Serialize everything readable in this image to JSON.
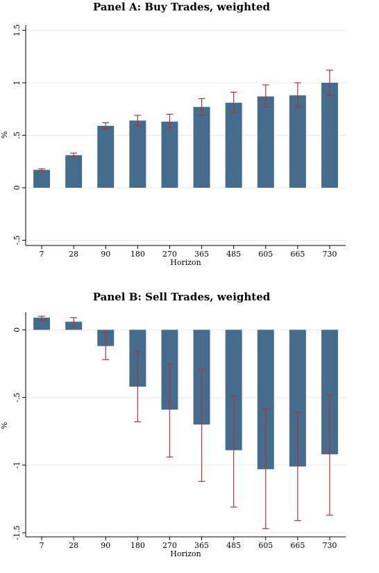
{
  "chart_data": [
    {
      "type": "bar",
      "title": "Panel A: Buy Trades, weighted",
      "xlabel": "Horizon",
      "ylabel": "%",
      "categories": [
        "7",
        "28",
        "90",
        "180",
        "270",
        "365",
        "485",
        "605",
        "665",
        "730"
      ],
      "values": [
        0.17,
        0.31,
        0.59,
        0.64,
        0.63,
        0.77,
        0.81,
        0.87,
        0.88,
        1.0
      ],
      "ci_low": [
        0.16,
        0.29,
        0.56,
        0.59,
        0.57,
        0.69,
        0.72,
        0.77,
        0.77,
        0.88
      ],
      "ci_high": [
        0.18,
        0.33,
        0.62,
        0.69,
        0.7,
        0.85,
        0.91,
        0.98,
        1.0,
        1.12
      ],
      "yticks": [
        -0.5,
        0,
        0.5,
        1,
        1.5
      ],
      "ytick_labels": [
        "-.5",
        "0",
        ".5",
        "1",
        "1.5"
      ],
      "ylim": [
        -0.55,
        1.55
      ],
      "grid": true,
      "colors": {
        "bar": "#456b8d",
        "error": "#a8363a",
        "grid": "#e3ecf2"
      }
    },
    {
      "type": "bar",
      "title": "Panel B: Sell Trades, weighted",
      "xlabel": "Horizon",
      "ylabel": "%",
      "categories": [
        "7",
        "28",
        "90",
        "180",
        "270",
        "365",
        "485",
        "605",
        "665",
        "730"
      ],
      "values": [
        0.09,
        0.06,
        -0.12,
        -0.42,
        -0.59,
        -0.7,
        -0.89,
        -1.03,
        -1.01,
        -0.92
      ],
      "ci_low": [
        0.07,
        0.02,
        -0.22,
        -0.68,
        -0.94,
        -1.12,
        -1.31,
        -1.47,
        -1.41,
        -1.37
      ],
      "ci_high": [
        0.1,
        0.09,
        -0.02,
        -0.16,
        -0.25,
        -0.29,
        -0.49,
        -0.58,
        -0.61,
        -0.48
      ],
      "yticks": [
        -1.5,
        -1,
        -0.5,
        0
      ],
      "ytick_labels": [
        "-1.5",
        "-1",
        "-.5",
        "0"
      ],
      "ylim": [
        -1.53,
        0.13
      ],
      "grid": true,
      "colors": {
        "bar": "#456b8d",
        "error": "#a8363a",
        "grid": "#e3ecf2"
      }
    }
  ]
}
